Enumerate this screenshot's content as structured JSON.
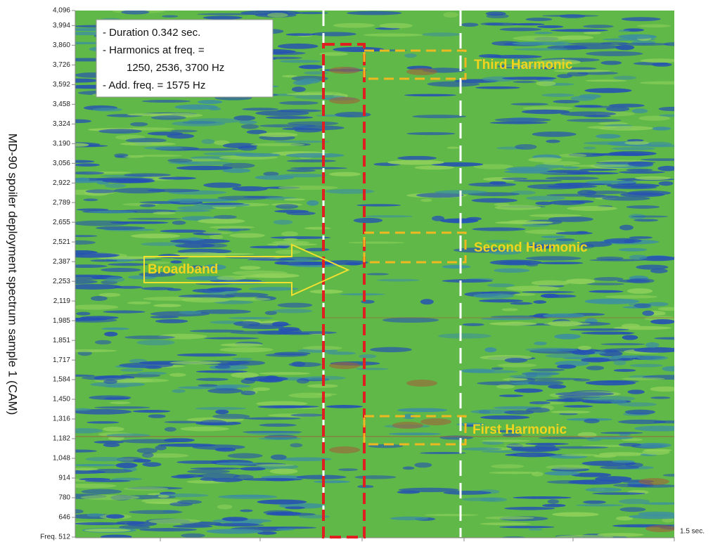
{
  "chart_data": {
    "type": "spectrogram",
    "ylabel": "MD-90 spoiler deployment spectrum sample 1 (CAM)",
    "ylim": [
      512,
      4096
    ],
    "yticks": [
      {
        "value": 512,
        "label": "Freq. 512"
      },
      646,
      780,
      914,
      {
        "value": 1048,
        "label": "1,048"
      },
      {
        "value": 1182,
        "label": "1,182"
      },
      {
        "value": 1316,
        "label": "1,316"
      },
      {
        "value": 1450,
        "label": "1,450"
      },
      {
        "value": 1584,
        "label": "1,584"
      },
      {
        "value": 1717,
        "label": "1,717"
      },
      {
        "value": 1851,
        "label": "1,851"
      },
      {
        "value": 1985,
        "label": "1,985"
      },
      {
        "value": 2119,
        "label": "2,119"
      },
      {
        "value": 2253,
        "label": "2,253"
      },
      {
        "value": 2387,
        "label": "2,387"
      },
      {
        "value": 2521,
        "label": "2,521"
      },
      {
        "value": 2655,
        "label": "2,655"
      },
      {
        "value": 2789,
        "label": "2,789"
      },
      {
        "value": 2922,
        "label": "2,922"
      },
      {
        "value": 3056,
        "label": "3,056"
      },
      {
        "value": 3190,
        "label": "3,190"
      },
      {
        "value": 3324,
        "label": "3,324"
      },
      {
        "value": 3458,
        "label": "3,458"
      },
      {
        "value": 3592,
        "label": "3,592"
      },
      {
        "value": 3726,
        "label": "3,726"
      },
      {
        "value": 3860,
        "label": "3,860"
      },
      {
        "value": 3994,
        "label": "3,994"
      },
      {
        "value": 4096,
        "label": "4,096"
      }
    ],
    "xlim": [
      0,
      1.5
    ],
    "xticks": [
      {
        "value": 1.5,
        "label": "1.5 sec."
      }
    ],
    "info_box": [
      "- Duration 0.342 sec.",
      "- Harmonics at freq. =",
      "1250, 2536, 3700 Hz",
      "- Add. freq. = 1575 Hz"
    ],
    "labels": [
      "Broadband",
      "Third Harmonic",
      "Second Harmonic",
      "First Harmonic"
    ]
  }
}
